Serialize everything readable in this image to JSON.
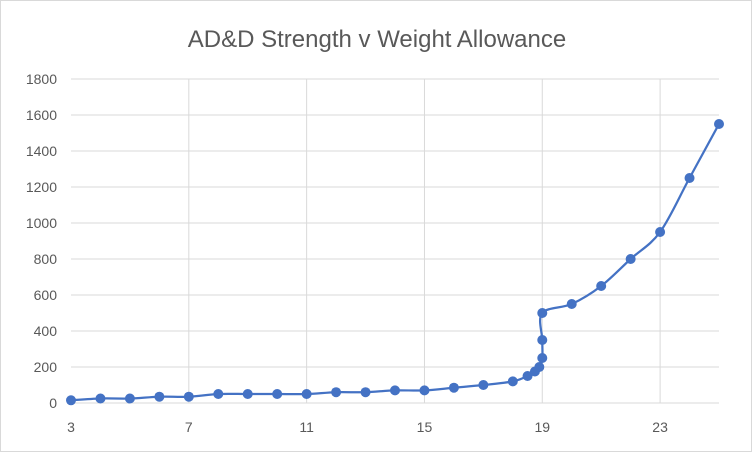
{
  "chart_data": {
    "type": "scatter",
    "title": "AD&D Strength v Weight Allowance",
    "xlabel": "",
    "ylabel": "",
    "xlim": [
      3,
      25
    ],
    "ylim": [
      0,
      1800
    ],
    "x_ticks": [
      3,
      7,
      11,
      15,
      19,
      23
    ],
    "y_ticks": [
      0,
      200,
      400,
      600,
      800,
      1000,
      1200,
      1400,
      1600,
      1800
    ],
    "grid": true,
    "legend": "none",
    "marker": "circle",
    "line": "smooth",
    "colors": {
      "series": "#4472c4",
      "grid": "#d9d9d9",
      "text": "#595959"
    },
    "series": [
      {
        "points": [
          [
            3,
            15
          ],
          [
            4,
            25
          ],
          [
            5,
            25
          ],
          [
            6,
            35
          ],
          [
            7,
            35
          ],
          [
            8,
            50
          ],
          [
            9,
            50
          ],
          [
            10,
            50
          ],
          [
            11,
            50
          ],
          [
            12,
            60
          ],
          [
            13,
            60
          ],
          [
            14,
            70
          ],
          [
            15,
            70
          ],
          [
            16,
            85
          ],
          [
            17,
            100
          ],
          [
            18,
            120
          ],
          [
            18.5,
            150
          ],
          [
            18.75,
            175
          ],
          [
            18.9,
            200
          ],
          [
            19,
            250
          ],
          [
            19,
            350
          ],
          [
            19,
            500
          ],
          [
            20,
            550
          ],
          [
            21,
            650
          ],
          [
            22,
            800
          ],
          [
            23,
            950
          ],
          [
            24,
            1250
          ],
          [
            25,
            1550
          ]
        ]
      }
    ]
  }
}
